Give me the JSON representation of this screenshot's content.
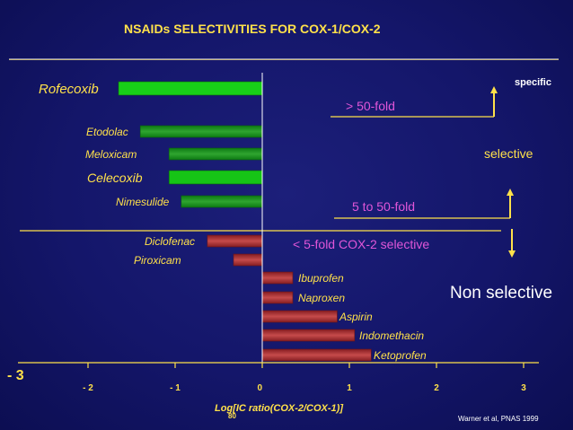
{
  "title": "NSAIDs SELECTIVITIES FOR COX-1/COX-2",
  "annotations": {
    "specific": "specific",
    "selective": "selective",
    "non_selective": "Non selective",
    "fold_50": "> 50-fold",
    "fold_5_50": "5 to 50-fold",
    "fold_5": "< 5-fold COX-2 selective"
  },
  "citation": "Warner et al, PNAS 1999",
  "axis": {
    "xlabel_main": "Log[IC    ratio(COX-2/COX-1)]",
    "xlabel_sub": "80",
    "minus3_label": "- 3"
  },
  "colors": {
    "background": "#14166a",
    "green": "#18d018",
    "red": "#b03030",
    "yellow": "#ffe14a",
    "pink": "#e056d8"
  },
  "chart_data": {
    "type": "bar",
    "orientation": "horizontal",
    "title": "NSAIDs SELECTIVITIES FOR COX-1/COX-2",
    "xlabel": "Log[IC80 ratio(COX-2/COX-1)]",
    "xlim": [
      -3,
      3
    ],
    "x_ticks": [
      "- 3",
      "- 2",
      "- 1",
      "0",
      "1",
      "2",
      "3"
    ],
    "categories": [
      "Rofecoxib",
      "Etodolac",
      "Meloxicam",
      "Celecoxib",
      "Nimesulide",
      "Diclofenac",
      "Piroxicam",
      "Ibuprofen",
      "Naproxen",
      "Aspirin",
      "Indomethacin",
      "Ketoprofen"
    ],
    "values": [
      -1.65,
      -1.4,
      -1.07,
      -1.07,
      -0.93,
      -0.63,
      -0.33,
      0.35,
      0.35,
      0.86,
      1.06,
      1.25
    ],
    "colors": [
      "green",
      "green",
      "green",
      "green",
      "green",
      "red",
      "red",
      "red",
      "red",
      "red",
      "red",
      "red"
    ],
    "grid": false
  }
}
